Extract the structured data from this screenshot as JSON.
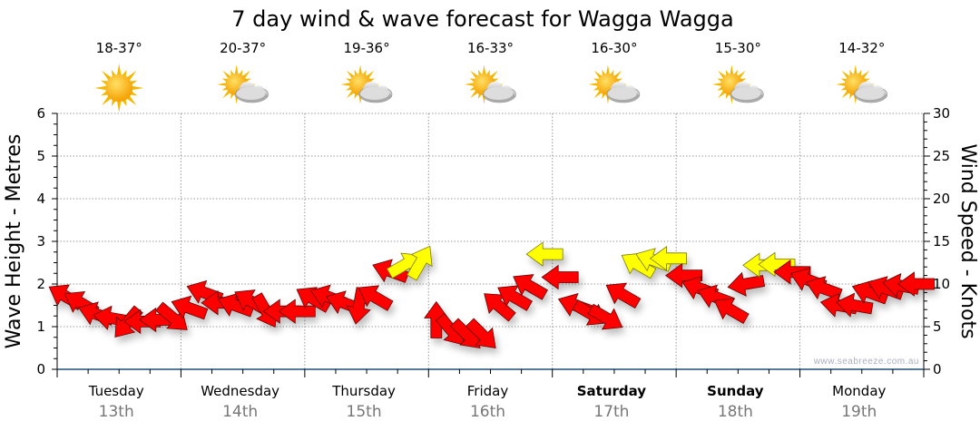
{
  "chart_data": {
    "type": "scatter",
    "title": "7 day wind & wave forecast for Wagga Wagga",
    "ylabel_left": "Wave Height - Metres",
    "ylabel_right": "Wind Speed - Knots",
    "ylim_left": [
      0,
      6
    ],
    "ylim_right": [
      0,
      30
    ],
    "left_ticks": [
      "0",
      "1",
      "2",
      "3",
      "4",
      "5",
      "6"
    ],
    "right_ticks": [
      "0",
      "5",
      "10",
      "15",
      "20",
      "25",
      "30"
    ],
    "grid": true,
    "watermark": "www.seabreeze.com.au",
    "colors": {
      "strong": "#ffff00",
      "normal": "#ff0000",
      "axis": "#1f4e79"
    },
    "strong_threshold_knots": 12,
    "days": [
      {
        "day": "Tuesday",
        "date": "13th",
        "temp": "18-37°",
        "icon": "sunny-icon",
        "bold": false
      },
      {
        "day": "Wednesday",
        "date": "14th",
        "temp": "20-37°",
        "icon": "partly-cloudy-icon",
        "bold": false
      },
      {
        "day": "Thursday",
        "date": "15th",
        "temp": "19-36°",
        "icon": "partly-cloudy-icon",
        "bold": false
      },
      {
        "day": "Friday",
        "date": "16th",
        "temp": "16-33°",
        "icon": "partly-cloudy-icon",
        "bold": false
      },
      {
        "day": "Saturday",
        "date": "17th",
        "temp": "16-30°",
        "icon": "partly-cloudy-icon",
        "bold": true
      },
      {
        "day": "Sunday",
        "date": "18th",
        "temp": "15-30°",
        "icon": "partly-cloudy-icon",
        "bold": true
      },
      {
        "day": "Monday",
        "date": "19th",
        "temp": "14-32°",
        "icon": "partly-cloudy-icon",
        "bold": false
      }
    ],
    "wind_series": {
      "name": "Wind (knots, arrow heading in degrees, 3-hourly)",
      "knots": [
        8.6,
        7.8,
        6.5,
        6.0,
        5.4,
        5.6,
        5.8,
        6.0,
        7.2,
        9.0,
        7.8,
        7.5,
        8.0,
        6.8,
        6.8,
        6.8,
        8.3,
        8.5,
        7.8,
        7.4,
        8.5,
        11.5,
        12.3,
        12.6,
        5.8,
        4.5,
        4.0,
        4.0,
        7.5,
        8.5,
        9.8,
        13.5,
        10.8,
        7.5,
        6.5,
        6.0,
        8.8,
        12.3,
        12.8,
        13.0,
        11.0,
        9.5,
        8.5,
        7.0,
        10.0,
        12.2,
        12.3,
        11.4,
        10.5,
        9.5,
        7.5,
        7.5,
        9.0,
        9.5,
        9.8,
        10.0
      ],
      "heading_deg": [
        210,
        210,
        200,
        190,
        130,
        180,
        180,
        40,
        200,
        200,
        180,
        200,
        210,
        60,
        180,
        180,
        210,
        200,
        200,
        100,
        210,
        200,
        -30,
        -60,
        -90,
        50,
        45,
        45,
        -140,
        -150,
        -150,
        180,
        180,
        200,
        30,
        30,
        210,
        -150,
        -160,
        180,
        180,
        200,
        200,
        210,
        170,
        180,
        180,
        180,
        200,
        200,
        190,
        190,
        200,
        200,
        190,
        180
      ]
    }
  }
}
